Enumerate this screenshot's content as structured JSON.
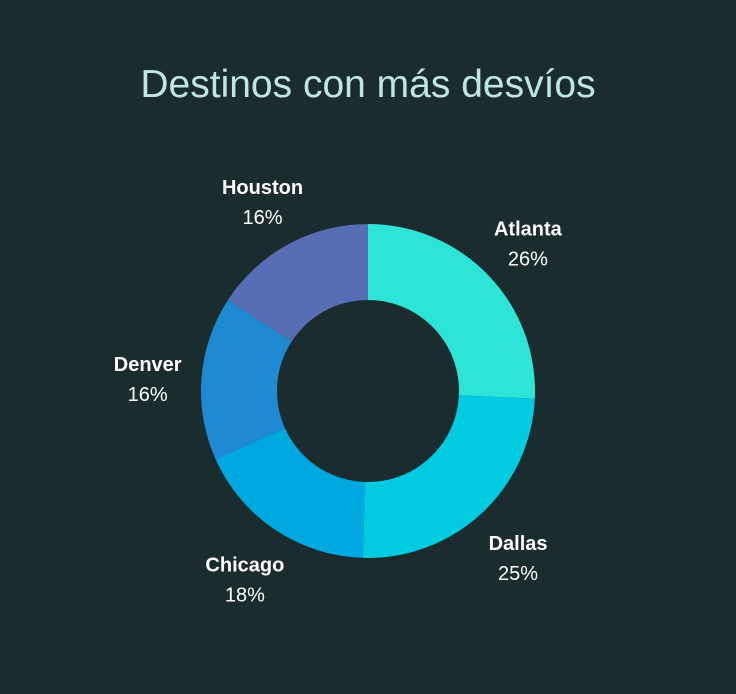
{
  "chart_data": {
    "type": "pie",
    "style": "donut",
    "title": "Destinos con más desvíos",
    "categories": [
      "Atlanta",
      "Dallas",
      "Chicago",
      "Denver",
      "Houston"
    ],
    "values": [
      26,
      25,
      18,
      16,
      16
    ],
    "value_labels": [
      "26%",
      "25%",
      "18%",
      "16%",
      "16%"
    ],
    "colors": [
      "#2de5d6",
      "#00cbe0",
      "#00a8e0",
      "#1d8ad2",
      "#576db4"
    ],
    "legend": "none",
    "labels_outside": true
  },
  "theme": {
    "background": "#1b2c2f",
    "title_color": "#bfe6e6",
    "label_color": "#ffffff"
  }
}
